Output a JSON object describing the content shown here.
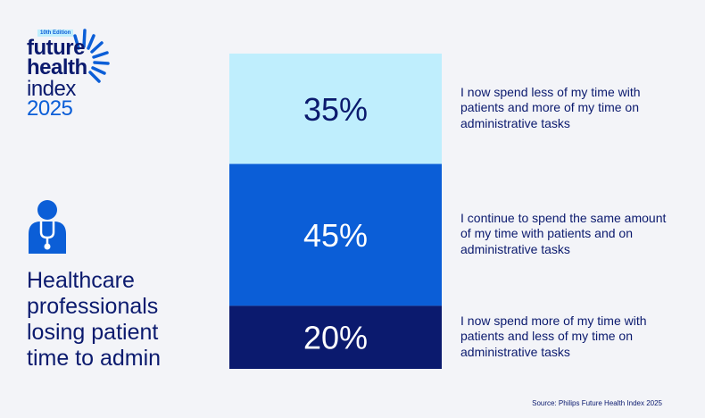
{
  "logo": {
    "edition": "10th Edition",
    "line1": "future",
    "line2": "health",
    "line3": "index",
    "line4": "2025"
  },
  "headline": "Healthcare professionals losing patient time to admin",
  "source": "Source: Philips Future Health Index 2025",
  "colors": {
    "background": "#f3f4f8",
    "light": "#bfeefd",
    "mid": "#0b5ed7",
    "dark": "#0b1a6e"
  },
  "icons": {
    "doctor": "doctor-stethoscope-icon",
    "logo": "sunburst-icon"
  },
  "chart_data": {
    "type": "bar",
    "stacked": true,
    "unit": "%",
    "categories": [
      "I now spend less of my time with patients and more of my time on administrative tasks",
      "I continue to spend the same amount of my time with patients and on administrative tasks",
      "I now spend more of my time with patients and less of my time on administrative tasks"
    ],
    "values": [
      35,
      45,
      20
    ],
    "data_labels": [
      "35%",
      "45%",
      "20%"
    ],
    "segment_colors": [
      "#bfeefd",
      "#0b5ed7",
      "#0b1a6e"
    ],
    "label_colors": [
      "#0b1a6e",
      "#ffffff",
      "#ffffff"
    ]
  }
}
